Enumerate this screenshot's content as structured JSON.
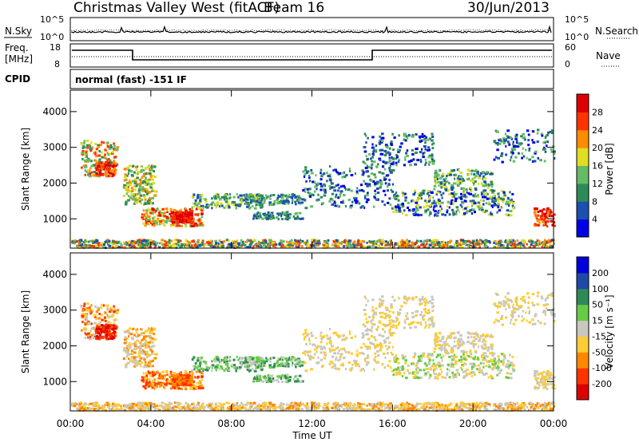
{
  "header": {
    "station": "Christmas Valley West (fitACF)",
    "beam": "Beam 16",
    "date": "30/Jun/2013"
  },
  "strip": {
    "nsky_label": "N.Sky",
    "nsky_ticks": [
      "10^5",
      "10^0"
    ],
    "nsearch_label": "N.Search",
    "nsearch_ticks": [
      "10^5",
      "10^0"
    ],
    "freq_label": "Freq.",
    "freq_unit": "[MHz]",
    "freq_ticks": [
      "18",
      "8"
    ],
    "nave_label": "Nave",
    "nave_ticks": [
      "60",
      "0"
    ],
    "cpid_label": "CPID",
    "cpid_value": "normal (fast) -151 IF"
  },
  "chart_data": [
    {
      "type": "heatmap",
      "name": "power",
      "ylabel": "Slant Range [km]",
      "yticks": [
        "1000",
        "2000",
        "3000",
        "4000"
      ],
      "ytick_values": [
        1000,
        2000,
        3000,
        4000
      ],
      "ylim": [
        180,
        4600
      ],
      "xlim": [
        0,
        24
      ],
      "xticks": [
        "00:00",
        "04:00",
        "08:00",
        "12:00",
        "16:00",
        "20:00",
        "00:00"
      ],
      "xtick_values": [
        0,
        4,
        8,
        12,
        16,
        20,
        24
      ],
      "colorbar_label": "Power [dB]",
      "colorbar_ticks": [
        "28",
        "24",
        "20",
        "16",
        "12",
        "8",
        "4"
      ],
      "colorbar_tick_values": [
        28,
        24,
        20,
        16,
        12,
        8,
        4
      ],
      "colorbar_range": [
        0,
        30
      ],
      "colorbar_colors": [
        "#0000e6",
        "#1c4fb0",
        "#2e8b57",
        "#66bb66",
        "#e0dd22",
        "#ff8c00",
        "#ff3300",
        "#dd0000"
      ]
    },
    {
      "type": "heatmap",
      "name": "velocity",
      "ylabel": "Slant Range [km]",
      "yticks": [
        "1000",
        "2000",
        "3000",
        "4000"
      ],
      "ytick_values": [
        1000,
        2000,
        3000,
        4000
      ],
      "ylim": [
        180,
        4600
      ],
      "xlim": [
        0,
        24
      ],
      "xticks": [
        "00:00",
        "04:00",
        "08:00",
        "12:00",
        "16:00",
        "20:00",
        "00:00"
      ],
      "xtick_values": [
        0,
        4,
        8,
        12,
        16,
        20,
        24
      ],
      "colorbar_label": "Velocity [m s⁻¹]",
      "colorbar_ticks": [
        "200",
        "100",
        "50",
        "15",
        "-15",
        "-50",
        "-100",
        "-200"
      ],
      "colorbar_colors": [
        "#0000dd",
        "#1f49a8",
        "#2e8b57",
        "#66cc44",
        "#c8c8c0",
        "#ffcc33",
        "#ff8800",
        "#ff3300",
        "#dd0000"
      ],
      "xlabel": "Time UT"
    }
  ]
}
